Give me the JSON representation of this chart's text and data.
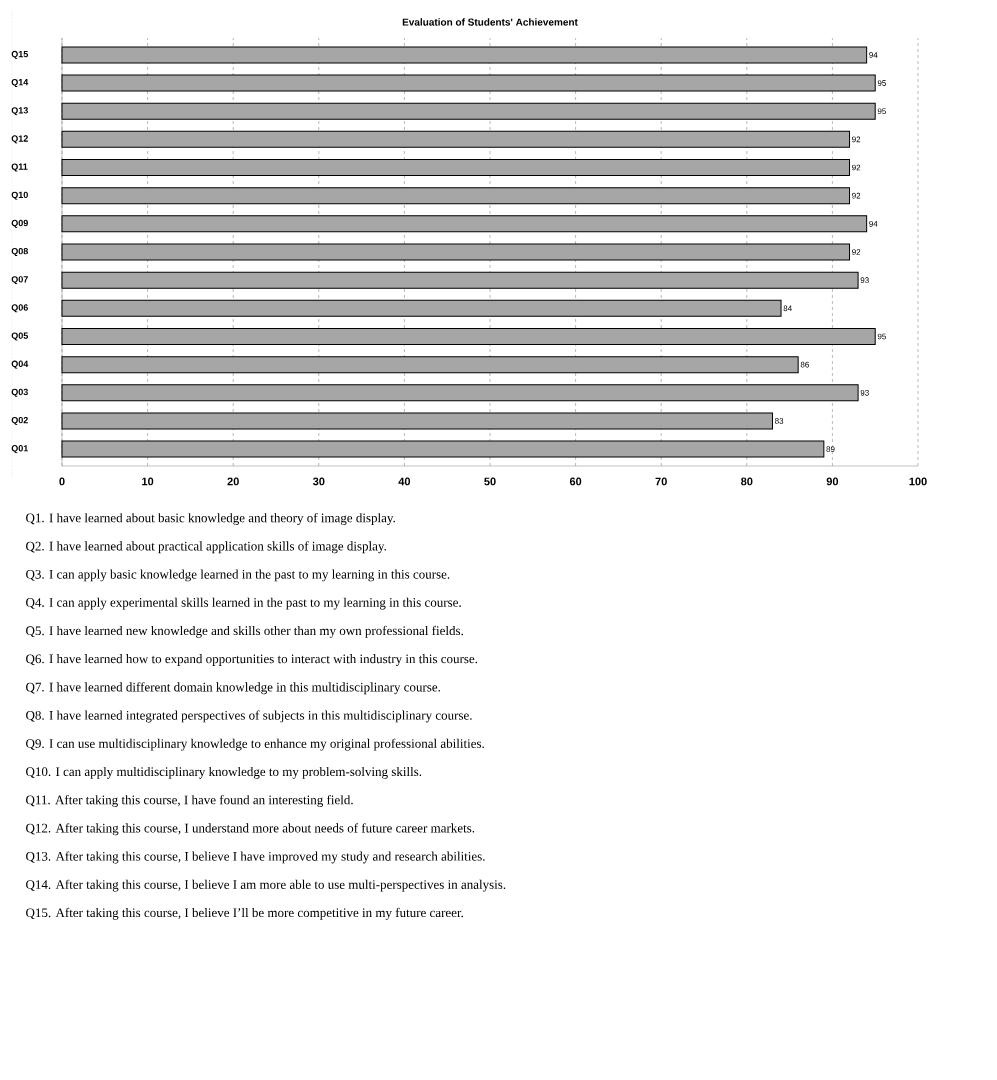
{
  "chart_data": {
    "type": "bar",
    "orientation": "horizontal",
    "title": "Evaluation of Students' Achievement",
    "categories": [
      "Q15",
      "Q14",
      "Q13",
      "Q12",
      "Q11",
      "Q10",
      "Q09",
      "Q08",
      "Q07",
      "Q06",
      "Q05",
      "Q04",
      "Q03",
      "Q02",
      "Q01"
    ],
    "values": [
      94,
      95,
      95,
      92,
      92,
      92,
      94,
      92,
      93,
      84,
      95,
      86,
      93,
      83,
      89
    ],
    "color": "#a6a6a6",
    "data_labels": true,
    "grid": "x",
    "xlim": [
      0,
      100
    ],
    "xticks": [
      0,
      10,
      20,
      30,
      40,
      50,
      60,
      70,
      80,
      90,
      100
    ],
    "annotations": [
      "Q1. I have learned about basic knowledge and theory of image display.",
      "Q2. I have learned about practical application skills of image display.",
      "Q3. I can apply basic knowledge learned in the past to my learning in this course.",
      "Q4. I can apply experimental skills learned in the past to my learning in this course.",
      "Q5. I have learned new knowledge and skills other than my own professional fields.",
      "Q6. I have learned how to expand opportunities to interact with industry in this course.",
      "Q7. I have learned different domain knowledge in this multidisciplinary course.",
      "Q8. I have learned integrated perspectives of subjects in this multidisciplinary course.",
      "Q9. I can use multidisciplinary knowledge to enhance my original professional abilities.",
      "Q10. I can apply multidisciplinary knowledge to my problem-solving skills.",
      "Q11. After taking this course, I have found an interesting field.",
      "Q12. After taking this course, I understand more about needs of future career markets.",
      "Q13. After taking this course, I believe I have improved my study and research abilities.",
      "Q14. After taking this course, I believe I am more able to use multi-perspectives in analysis.",
      "Q15. After taking this course, I believe I’ll be more competitive in my future career."
    ]
  }
}
